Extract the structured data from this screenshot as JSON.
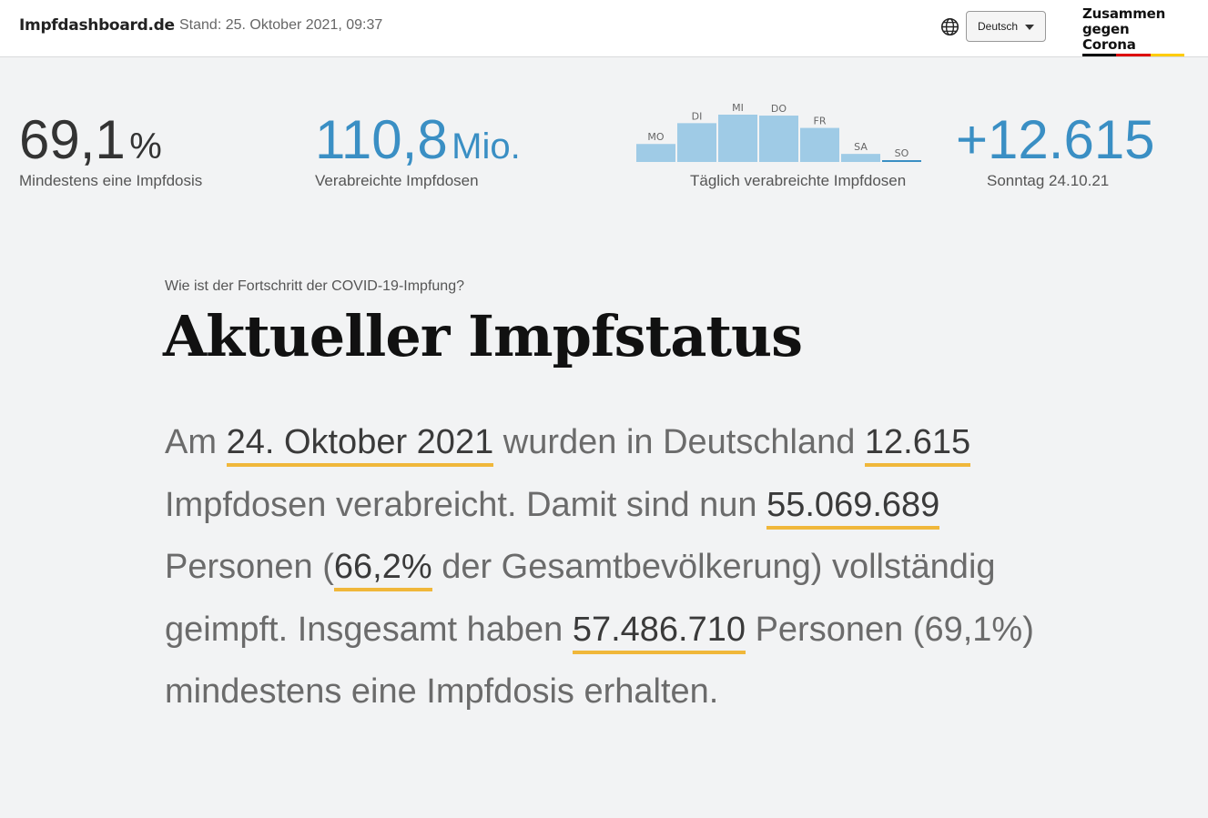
{
  "header": {
    "site_title": "Impfdashboard.de",
    "stand": "Stand: 25. Oktober 2021, 09:37",
    "globe_icon": "globe-icon",
    "language": "Deutsch",
    "logo": {
      "line1": "Zusammen",
      "line2": "gegen Corona",
      "flag_colors": [
        "#000000",
        "#dd0000",
        "#ffcc00"
      ]
    }
  },
  "stats": {
    "first_dose": {
      "value": "69,1",
      "unit": "%",
      "label": "Mindestens eine Impfdosis"
    },
    "total_doses": {
      "value": "110,8",
      "unit": "Mio.",
      "label": "Verabreichte Impfdosen"
    },
    "daily_label": "Täglich verabreichte Impfdosen",
    "latest": {
      "value": "+12.615",
      "label": "Sonntag 24.10.21"
    }
  },
  "chart_data": {
    "type": "bar",
    "categories": [
      "MO",
      "DI",
      "MI",
      "DO",
      "FR",
      "SA",
      "SO"
    ],
    "values": [
      0.38,
      0.82,
      1.0,
      0.98,
      0.72,
      0.17,
      0.03
    ],
    "highlight": "SO",
    "ylim": [
      0,
      1
    ],
    "colors": {
      "bar": "#9fcbe6",
      "highlight": "#3a8fc4"
    }
  },
  "section": {
    "question": "Wie ist der Fortschritt der COVID-19-Impfung?",
    "heading": "Aktueller Impfstatus"
  },
  "paragraph": {
    "t1": "Am ",
    "date": "24. Oktober 2021",
    "t2": " wurden in Deutschland ",
    "doses": "12.615",
    "t3": " Impfdosen verabreicht. Damit sind nun ",
    "fully": "55.069.689",
    "t4": " Personen (",
    "fully_pct": "66,2%",
    "t5": " der Gesamtbevölkerung) vollständig geimpft. Insgesamt haben ",
    "first": "57.486.710",
    "t6": " Personen (69,1%) mindestens eine Impfdosis erhalten."
  },
  "colors": {
    "accent_blue": "#3a8fc4",
    "highlight_underline": "#f0b73a",
    "dark_text": "#333333"
  }
}
